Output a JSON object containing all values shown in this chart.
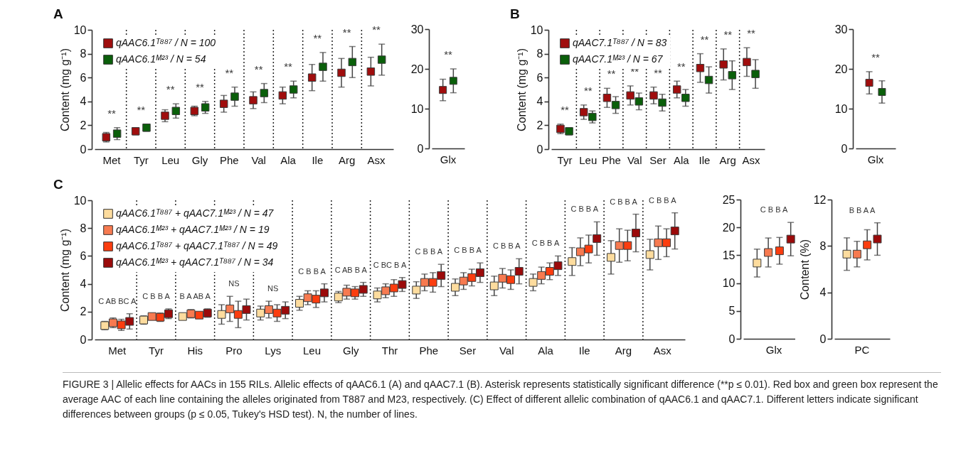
{
  "chart_data": [
    {
      "type": "scatter",
      "title": "A",
      "ylabel": "Content (mg g⁻¹)",
      "categories": [
        "Met",
        "Tyr",
        "Leu",
        "Gly",
        "Phe",
        "Val",
        "Ala",
        "Ile",
        "Arg",
        "Asx"
      ],
      "ylim": [
        0,
        10
      ],
      "yticks": [
        0,
        2,
        4,
        6,
        8,
        10
      ],
      "grid": "x",
      "legend": "top left",
      "marker": "square",
      "series": [
        {
          "name": "qAAC6.1ᵀ⁸⁸⁷ / N = 100",
          "color": "#a00d0d",
          "values": [
            1.0,
            1.5,
            2.8,
            3.2,
            3.8,
            4.1,
            4.5,
            6.0,
            6.4,
            6.5
          ],
          "errors": [
            0.4,
            0.3,
            0.5,
            0.4,
            0.7,
            0.7,
            0.7,
            1.1,
            1.2,
            1.2
          ]
        },
        {
          "name": "qAAC6.1ᴹ²³ / N = 54",
          "color": "#0a5f0a",
          "values": [
            1.3,
            1.8,
            3.2,
            3.5,
            4.4,
            4.7,
            5.0,
            6.9,
            7.3,
            7.5
          ],
          "errors": [
            0.5,
            0.3,
            0.6,
            0.5,
            0.8,
            0.8,
            0.7,
            1.2,
            1.3,
            1.3
          ]
        }
      ],
      "annotations": [
        "**",
        "**",
        "**",
        "**",
        "**",
        "**",
        "**",
        "**",
        "**",
        "**"
      ]
    },
    {
      "type": "scatter",
      "categories": [
        "Glx"
      ],
      "ylim": [
        0,
        30
      ],
      "yticks": [
        0,
        10,
        20,
        30
      ],
      "marker": "square",
      "series": [
        {
          "color": "#a00d0d",
          "values": [
            14.7
          ],
          "errors": [
            2.7
          ]
        },
        {
          "color": "#0a5f0a",
          "values": [
            17.0
          ],
          "errors": [
            3.0
          ]
        }
      ],
      "annotations": [
        "**"
      ]
    },
    {
      "type": "scatter",
      "title": "B",
      "ylabel": "Content (mg g⁻¹)",
      "categories": [
        "Tyr",
        "Leu",
        "Phe",
        "Val",
        "Ser",
        "Ala",
        "Ile",
        "Arg",
        "Asx"
      ],
      "ylim": [
        0,
        10
      ],
      "yticks": [
        0,
        2,
        4,
        6,
        8,
        10
      ],
      "grid": "x",
      "legend": "top left",
      "marker": "square",
      "series": [
        {
          "name": "qAAC7.1ᵀ⁸⁸⁷ / N = 83",
          "color": "#a00d0d",
          "values": [
            1.7,
            3.1,
            4.3,
            4.5,
            4.5,
            5.0,
            6.8,
            7.1,
            7.3
          ],
          "errors": [
            0.4,
            0.6,
            0.8,
            0.8,
            0.7,
            0.7,
            1.2,
            1.3,
            1.2
          ]
        },
        {
          "name": "qAAC7.1ᴹ²³ / N = 67",
          "color": "#0a5f0a",
          "values": [
            1.5,
            2.7,
            3.7,
            4.0,
            3.9,
            4.3,
            5.8,
            6.2,
            6.3
          ],
          "errors": [
            0.3,
            0.5,
            0.7,
            0.7,
            0.7,
            0.7,
            1.1,
            1.2,
            1.2
          ]
        }
      ],
      "annotations": [
        "**",
        "**",
        "**",
        "**",
        "**",
        "**",
        "**",
        "**",
        "**"
      ]
    },
    {
      "type": "scatter",
      "categories": [
        "Glx"
      ],
      "ylim": [
        0,
        30
      ],
      "yticks": [
        0,
        10,
        20,
        30
      ],
      "marker": "square",
      "series": [
        {
          "color": "#a00d0d",
          "values": [
            16.5
          ],
          "errors": [
            2.8
          ]
        },
        {
          "color": "#0a5f0a",
          "values": [
            14.2
          ],
          "errors": [
            2.8
          ]
        }
      ],
      "annotations": [
        "**"
      ]
    },
    {
      "type": "scatter",
      "title": "C",
      "ylabel": "Content (mg g⁻¹)",
      "categories": [
        "Met",
        "Tyr",
        "His",
        "Pro",
        "Lys",
        "Leu",
        "Gly",
        "Thr",
        "Phe",
        "Ser",
        "Val",
        "Ala",
        "Ile",
        "Arg",
        "Asx"
      ],
      "ylim": [
        0,
        10
      ],
      "yticks": [
        0,
        2,
        4,
        6,
        8,
        10
      ],
      "grid": "x",
      "legend": "top left",
      "marker": "square",
      "series": [
        {
          "name": "qAAC6.1ᵀ⁸⁸⁷ + qAAC7.1ᴹ²³ / N = 47",
          "color": "#fddc9e",
          "values": [
            1.0,
            1.4,
            1.65,
            1.8,
            1.9,
            2.6,
            3.05,
            3.2,
            3.55,
            3.75,
            3.85,
            4.1,
            5.6,
            5.9,
            6.1
          ],
          "errors": [
            0.3,
            0.3,
            null,
            0.7,
            0.5,
            0.5,
            0.4,
            0.5,
            0.6,
            0.6,
            0.7,
            0.6,
            1.0,
            1.2,
            1.1
          ]
        },
        {
          "name": "qAAC6.1ᴹ²³ + qAAC7.1ᴹ²³ / N = 19",
          "color": "#f77a50",
          "values": [
            1.2,
            1.65,
            1.85,
            2.2,
            2.15,
            3.0,
            3.4,
            3.5,
            4.1,
            4.2,
            4.4,
            4.6,
            6.3,
            6.75,
            6.95
          ],
          "errors": [
            0.35,
            0.2,
            0.3,
            0.9,
            0.6,
            0.5,
            0.5,
            0.5,
            0.6,
            0.6,
            0.7,
            0.6,
            1.0,
            1.2,
            1.2
          ]
        },
        {
          "name": "qAAC6.1ᵀ⁸⁸⁷ + qAAC7.1ᵀ⁸⁸⁷ / N = 49",
          "color": "#fb3d0f",
          "values": [
            1.05,
            1.6,
            1.75,
            1.8,
            1.9,
            2.9,
            3.35,
            3.7,
            4.1,
            4.45,
            4.3,
            4.9,
            6.5,
            6.75,
            6.95
          ],
          "errors": [
            0.4,
            0.3,
            0.2,
            0.95,
            0.6,
            0.6,
            0.45,
            0.6,
            0.7,
            0.6,
            0.7,
            0.6,
            1.0,
            1.1,
            1.0
          ]
        },
        {
          "name": "qAAC6.1ᴹ²³ + qAAC7.1ᵀ⁸⁸⁷ / N = 34",
          "color": "#9b0a0a",
          "values": [
            1.3,
            1.85,
            1.9,
            2.15,
            2.1,
            3.35,
            3.6,
            3.95,
            4.6,
            4.8,
            4.9,
            5.3,
            7.25,
            7.65,
            7.8
          ],
          "errors": [
            0.55,
            0.35,
            0.3,
            0.75,
            0.6,
            0.65,
            0.5,
            0.5,
            0.8,
            0.7,
            0.9,
            0.7,
            1.2,
            1.35,
            1.3
          ]
        }
      ],
      "annotations": [
        "C AB BC A",
        "C B B A",
        "B A AB A",
        "NS",
        "NS",
        "C B B A",
        "C AB B A",
        "C BC B A",
        "C B B A",
        "C B B A",
        "C B B A",
        "C B B A",
        "C B B A",
        "C B B A",
        "C B B A"
      ]
    },
    {
      "type": "scatter",
      "categories": [
        "Glx"
      ],
      "ylim": [
        0,
        25
      ],
      "yticks": [
        0,
        5,
        10,
        15,
        20,
        25
      ],
      "marker": "square",
      "series": [
        {
          "color": "#fddc9e",
          "values": [
            13.6
          ],
          "errors": [
            2.5
          ]
        },
        {
          "color": "#f77a50",
          "values": [
            15.5
          ],
          "errors": [
            2.6
          ]
        },
        {
          "color": "#fb3d0f",
          "values": [
            15.8
          ],
          "errors": [
            2.4
          ]
        },
        {
          "color": "#9b0a0a",
          "values": [
            17.9
          ],
          "errors": [
            3.0
          ]
        }
      ],
      "annotations": [
        "C B B A"
      ]
    },
    {
      "type": "scatter",
      "ylabel": "Content (%)",
      "categories": [
        "PC"
      ],
      "ylim": [
        0,
        12
      ],
      "yticks": [
        0,
        4,
        8,
        12
      ],
      "marker": "square",
      "series": [
        {
          "color": "#fddc9e",
          "values": [
            7.3
          ],
          "errors": [
            1.4
          ]
        },
        {
          "color": "#f77a50",
          "values": [
            7.3
          ],
          "errors": [
            1.1
          ]
        },
        {
          "color": "#fb3d0f",
          "values": [
            8.1
          ],
          "errors": [
            1.3
          ]
        },
        {
          "color": "#9b0a0a",
          "values": [
            8.6
          ],
          "errors": [
            1.4
          ]
        }
      ],
      "annotations": [
        "B B A A",
        "FIGURE 3 | Allelic effects for AACs in 155 RILs. Allelic effects of qAAC6.1 (A) and qAAC7.1 (B). Asterisk represents statistically significant difference (**p ≤ 0.01). Red box and green box represent the average AAC of each line containing the alleles originated from T887 and M23, respectively. (C) Effect of different allelic combination of qAAC6.1 and qAAC7.1. Different letters indicate significant differences between groups (p ≤ 0.05, Tukey's HSD test). N, the number of lines."
      ]
    }
  ]
}
